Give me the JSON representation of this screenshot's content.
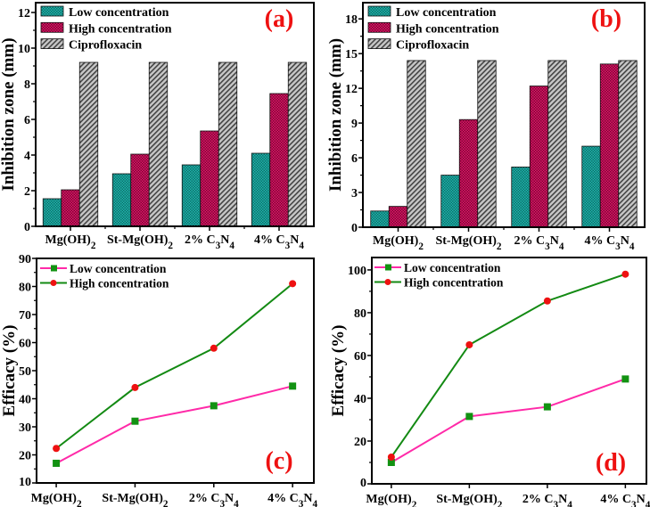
{
  "colors": {
    "low_bar": "#1fb5ad",
    "high_bar": "#d0115b",
    "cipro_bar": "#9a9a9a",
    "low_line": "#ff2aa8",
    "high_line": "#138a13",
    "low_marker": "#129212",
    "high_marker": "#ee1111",
    "panel_label": "#ee1111"
  },
  "chart_data": [
    {
      "type": "bar",
      "panel_label": "(a)",
      "ylabel": "Inhibition zone (mm)",
      "ylim": [
        0,
        12.55
      ],
      "yticks": [
        0,
        2,
        4,
        6,
        8,
        10,
        12
      ],
      "categories": [
        "Mg(OH)2",
        "St-Mg(OH)2",
        "2% C3N4",
        "4% C3N4"
      ],
      "series": [
        {
          "name": "Low concentration",
          "values": [
            1.55,
            2.95,
            3.45,
            4.1
          ]
        },
        {
          "name": "High concentration",
          "values": [
            2.05,
            4.05,
            5.35,
            7.45
          ]
        },
        {
          "name": "Ciprofloxacin",
          "values": [
            9.2,
            9.2,
            9.2,
            9.2
          ]
        }
      ],
      "legend": "top-left"
    },
    {
      "type": "bar",
      "panel_label": "(b)",
      "ylabel": "Inhibition zone (mm)",
      "ylim": [
        0,
        19.4
      ],
      "yticks": [
        0,
        3,
        6,
        9,
        12,
        15,
        18
      ],
      "categories": [
        "Mg(OH)2",
        "St-Mg(OH)2",
        "2% C3N4",
        "4% C3N4"
      ],
      "series": [
        {
          "name": "Low concentration",
          "values": [
            1.4,
            4.5,
            5.2,
            7.0
          ]
        },
        {
          "name": "High concentration",
          "values": [
            1.8,
            9.3,
            12.2,
            14.1
          ]
        },
        {
          "name": "Ciprofloxacin",
          "values": [
            14.4,
            14.4,
            14.4,
            14.4
          ]
        }
      ],
      "legend": "top-left"
    },
    {
      "type": "line",
      "panel_label": "(c)",
      "ylabel": "Efficacy (%)",
      "ylim": [
        10,
        90
      ],
      "yticks": [
        10,
        20,
        30,
        40,
        50,
        60,
        70,
        80,
        90
      ],
      "categories": [
        "Mg(OH)2",
        "St-Mg(OH)2",
        "2% C3N4",
        "4% C3N4"
      ],
      "series": [
        {
          "name": "Low concentration",
          "values": [
            17,
            32,
            37.5,
            44.5
          ]
        },
        {
          "name": "High concentration",
          "values": [
            22.3,
            44,
            58,
            81
          ]
        }
      ],
      "legend": "top-left"
    },
    {
      "type": "line",
      "panel_label": "(d)",
      "ylabel": "Efficacy (%)",
      "ylim": [
        0,
        105.8
      ],
      "yticks": [
        0,
        20,
        40,
        60,
        80,
        100
      ],
      "categories": [
        "Mg(OH)2",
        "St-Mg(OH)2",
        "2% C3N4",
        "4% C3N4"
      ],
      "series": [
        {
          "name": "Low concentration",
          "values": [
            10,
            31.5,
            36,
            49
          ]
        },
        {
          "name": "High concentration",
          "values": [
            12.5,
            65,
            85.5,
            98
          ]
        }
      ],
      "legend": "top-left"
    }
  ]
}
